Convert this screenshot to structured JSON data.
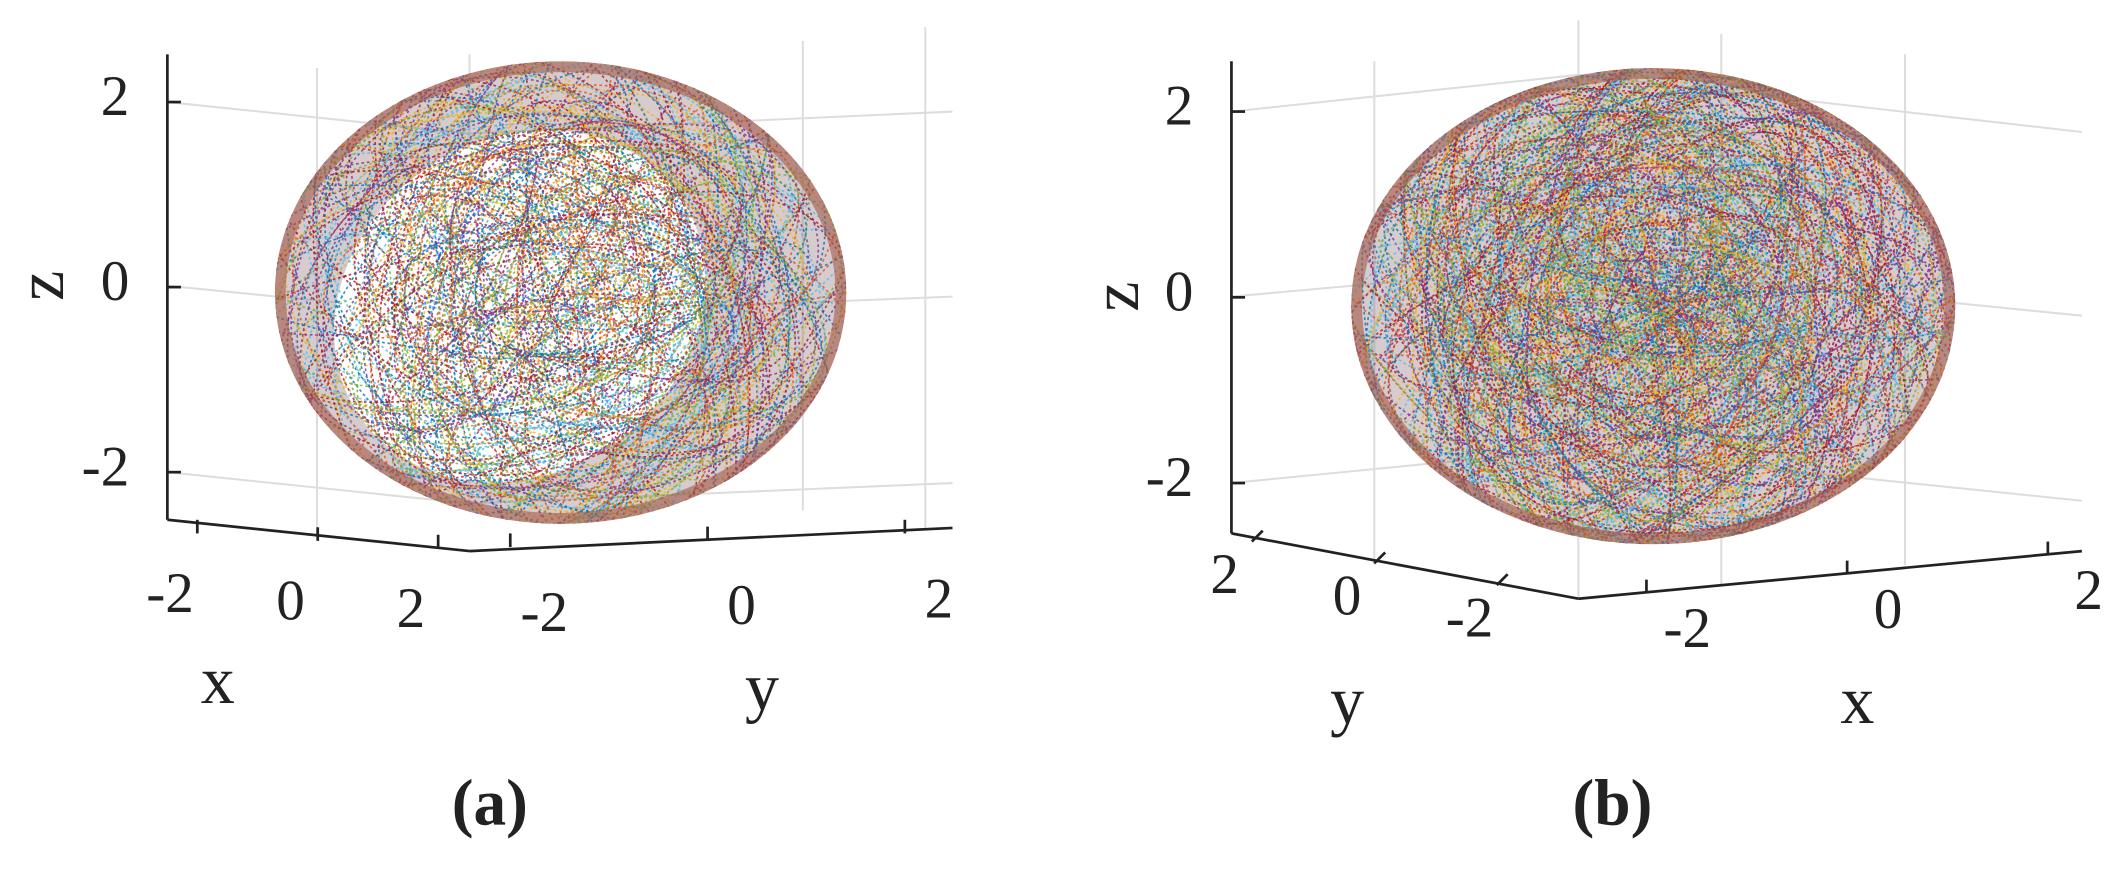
{
  "panels": [
    {
      "caption": "(a)",
      "axes": {
        "x": {
          "label": "x",
          "ticks": [
            -2,
            0,
            2
          ]
        },
        "y": {
          "label": "y",
          "ticks": [
            -2,
            0,
            2
          ]
        },
        "z": {
          "label": "z",
          "ticks": [
            -2,
            0,
            2
          ]
        }
      }
    },
    {
      "caption": "(b)",
      "axes": {
        "x": {
          "label": "x",
          "ticks": [
            -2,
            0,
            2
          ]
        },
        "y": {
          "label": "y",
          "ticks": [
            2,
            0,
            -2
          ]
        },
        "z": {
          "label": "z",
          "ticks": [
            -2,
            0,
            2
          ]
        }
      }
    }
  ]
}
